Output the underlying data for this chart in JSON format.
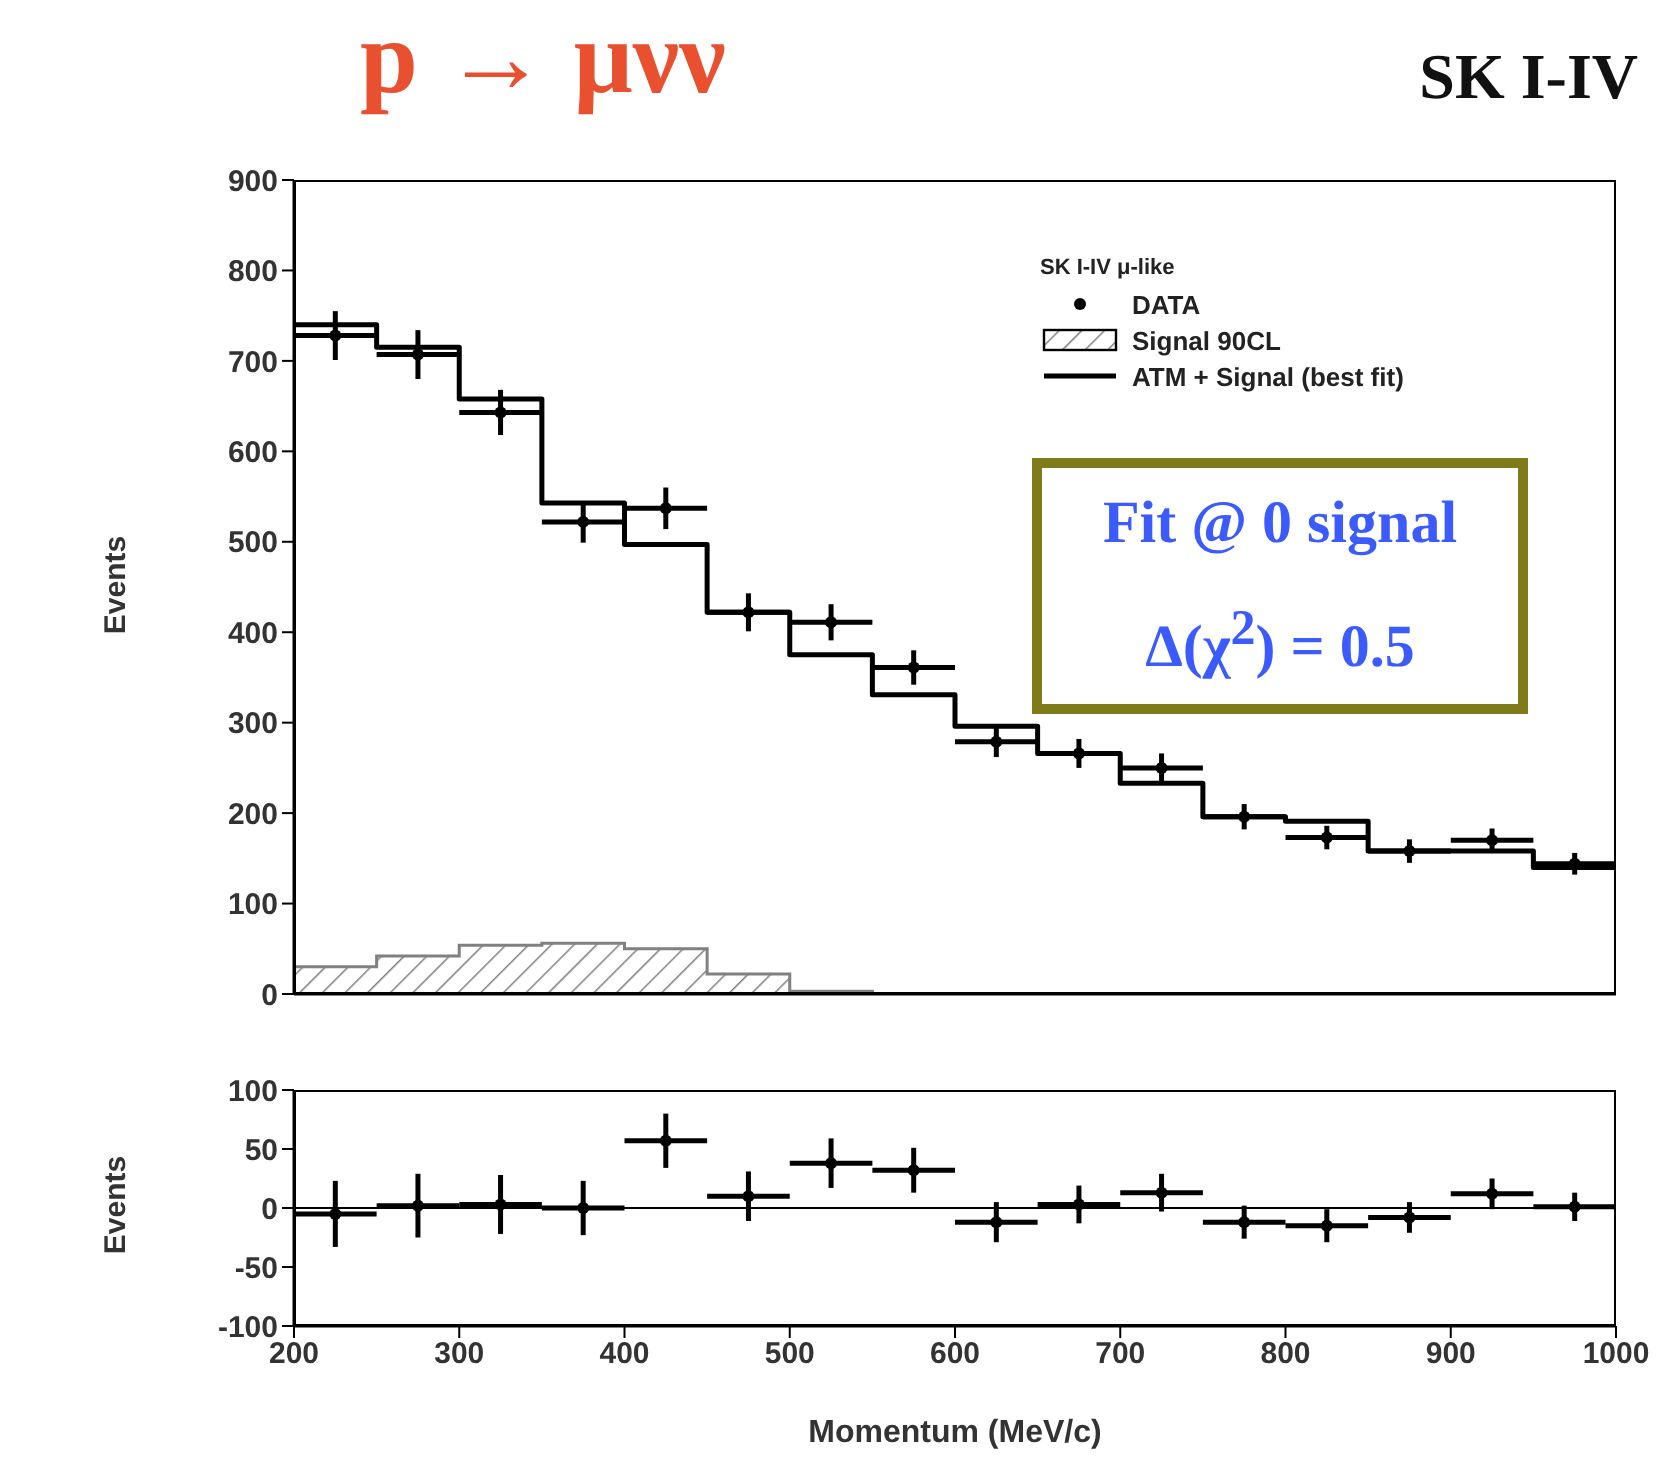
{
  "chart_data": [
    {
      "type": "histogram",
      "title": "p → μνν",
      "subtitle": "SK I-IV",
      "ylabel": "Events",
      "legend_title": "SK I-IV μ-like",
      "legend": "top right",
      "tick_labels": "y",
      "bins": [
        200,
        250,
        300,
        350,
        400,
        450,
        500,
        550,
        600,
        650,
        700,
        750,
        800,
        850,
        900,
        950,
        1000
      ],
      "xlim": [
        200,
        1000
      ],
      "xticks": [
        200,
        300,
        400,
        500,
        600,
        700,
        800,
        900,
        1000
      ],
      "ylim": [
        0,
        900
      ],
      "yticks": [
        0,
        100,
        200,
        300,
        400,
        500,
        600,
        700,
        800,
        900
      ],
      "series": [
        {
          "name": "DATA",
          "type": "scatter",
          "marker": "circle",
          "color": "#000000",
          "x": [
            225,
            275,
            325,
            375,
            425,
            475,
            525,
            575,
            625,
            675,
            725,
            775,
            825,
            875,
            925,
            975
          ],
          "values": [
            728,
            707,
            643,
            522,
            537,
            422,
            411,
            361,
            279,
            266,
            250,
            196,
            173,
            158,
            170,
            144
          ],
          "errors": [
            27,
            27,
            25,
            23,
            23,
            21,
            20,
            19,
            17,
            16,
            16,
            14,
            13,
            13,
            13,
            12
          ],
          "xerrors": [
            25,
            25,
            25,
            25,
            25,
            25,
            25,
            25,
            25,
            25,
            25,
            25,
            25,
            25,
            25,
            25
          ]
        },
        {
          "name": "Signal 90CL",
          "color": "#808080",
          "values": [
            30,
            42,
            54,
            56,
            50,
            22,
            3,
            0,
            0,
            0,
            0,
            0,
            0,
            0,
            0,
            0
          ]
        },
        {
          "name": "ATM + Signal (best fit)",
          "type": "step",
          "color": "#000000",
          "marker": "none",
          "x": [
            200,
            250,
            300,
            350,
            400,
            450,
            500,
            550,
            600,
            650,
            700,
            750,
            800,
            850,
            900,
            950,
            1000
          ],
          "values": [
            740,
            715,
            658,
            543,
            497,
            422,
            375,
            331,
            296,
            266,
            233,
            196,
            191,
            158,
            158,
            140,
            140
          ]
        }
      ],
      "annotations": [
        "Fit @ 0 signal",
        "Δ(χ$^{2}$) = 0.5"
      ]
    },
    {
      "type": "scatter",
      "xlabel": "Momentum (MeV/c)",
      "ylabel": "Events",
      "marker": "circle",
      "xlim": [
        200,
        1000
      ],
      "xticks": [
        200,
        300,
        400,
        500,
        600,
        700,
        800,
        900,
        1000
      ],
      "ylim": [
        -100,
        100
      ],
      "yticks": [
        -100,
        -50,
        0,
        50,
        100
      ],
      "ref_lines": [
        {
          "axis": "y",
          "value": 0,
          "color": "#000000"
        }
      ],
      "x": [
        225,
        275,
        325,
        375,
        425,
        475,
        525,
        575,
        625,
        675,
        725,
        775,
        825,
        875,
        925,
        975
      ],
      "values": [
        -5,
        2,
        3,
        0,
        57,
        10,
        38,
        32,
        -12,
        3,
        13,
        -12,
        -15,
        -8,
        12,
        1
      ],
      "errors": [
        28,
        27,
        25,
        23,
        23,
        21,
        21,
        19,
        17,
        16,
        16,
        14,
        14,
        13,
        13,
        12
      ],
      "xerrors": [
        25,
        25,
        25,
        25,
        25,
        25,
        25,
        25,
        25,
        25,
        25,
        25,
        25,
        25,
        25,
        25
      ],
      "color": "#000000"
    }
  ]
}
